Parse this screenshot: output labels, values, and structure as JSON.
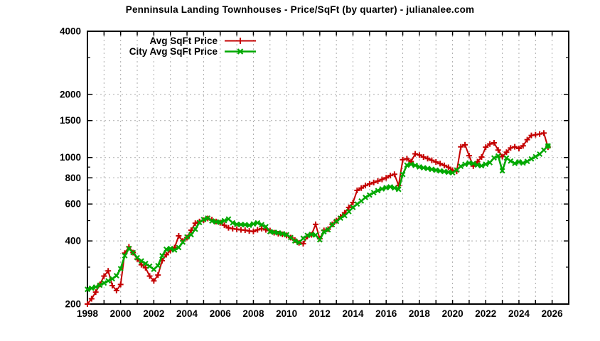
{
  "page": {
    "background": "#ffffff"
  },
  "chart_data": {
    "type": "line",
    "title": "Penninsula Landing Townhouses - Price/SqFt (by quarter) - julianalee.com",
    "xlabel": "",
    "ylabel": "",
    "x_axis": {
      "min": 1998,
      "max": 2027,
      "labeled_ticks": [
        1998,
        2000,
        2002,
        2004,
        2006,
        2008,
        2010,
        2012,
        2014,
        2016,
        2018,
        2020,
        2022,
        2024,
        2026
      ],
      "minor_tick_every": 1,
      "grid": true
    },
    "y_axis": {
      "scale": "log",
      "min": 200,
      "max": 4000,
      "labeled_ticks": [
        200,
        400,
        600,
        800,
        1000,
        1500,
        2000,
        4000
      ],
      "minor_ticks": [
        300,
        500,
        700,
        900,
        3000
      ],
      "grid_at": [
        400,
        600,
        800,
        1000,
        1500,
        2000
      ]
    },
    "legend": {
      "position": "top-left-inside"
    },
    "colors": {
      "axis": "#000000",
      "grid": "#ababab",
      "background": "#ffffff"
    },
    "series": [
      {
        "name": "Avg SqFt Price",
        "color": "#c40000",
        "marker": "plus",
        "line_width": 2,
        "end_square": false,
        "points": [
          [
            1998,
            200
          ],
          [
            1998.25,
            212
          ],
          [
            1998.5,
            228
          ],
          [
            1998.75,
            248
          ],
          [
            1999,
            272
          ],
          [
            1999.25,
            288
          ],
          [
            1999.5,
            245
          ],
          [
            1999.75,
            232
          ],
          [
            2000,
            248
          ],
          [
            2000.25,
            350
          ],
          [
            2000.5,
            375
          ],
          [
            2000.75,
            352
          ],
          [
            2001,
            328
          ],
          [
            2001.25,
            308
          ],
          [
            2001.5,
            298
          ],
          [
            2001.75,
            272
          ],
          [
            2002,
            258
          ],
          [
            2002.25,
            275
          ],
          [
            2002.5,
            322
          ],
          [
            2002.75,
            344
          ],
          [
            2003,
            360
          ],
          [
            2003.25,
            372
          ],
          [
            2003.5,
            423
          ],
          [
            2003.75,
            400
          ],
          [
            2004,
            415
          ],
          [
            2004.25,
            450
          ],
          [
            2004.5,
            486
          ],
          [
            2004.75,
            495
          ],
          [
            2005,
            502
          ],
          [
            2005.25,
            512
          ],
          [
            2005.5,
            505
          ],
          [
            2005.75,
            495
          ],
          [
            2006,
            488
          ],
          [
            2006.25,
            475
          ],
          [
            2006.5,
            462
          ],
          [
            2006.75,
            458
          ],
          [
            2007,
            455
          ],
          [
            2007.25,
            452
          ],
          [
            2007.5,
            450
          ],
          [
            2007.75,
            446
          ],
          [
            2008,
            444
          ],
          [
            2008.25,
            452
          ],
          [
            2008.5,
            458
          ],
          [
            2008.75,
            452
          ],
          [
            2009,
            448
          ],
          [
            2009.25,
            438
          ],
          [
            2009.5,
            433
          ],
          [
            2009.75,
            430
          ],
          [
            2010,
            425
          ],
          [
            2010.25,
            415
          ],
          [
            2010.5,
            404
          ],
          [
            2010.75,
            392
          ],
          [
            2011,
            388
          ],
          [
            2011.25,
            420
          ],
          [
            2011.5,
            428
          ],
          [
            2011.75,
            480
          ],
          [
            2012,
            410
          ],
          [
            2012.25,
            449
          ],
          [
            2012.5,
            455
          ],
          [
            2012.75,
            480
          ],
          [
            2013,
            500
          ],
          [
            2013.25,
            522
          ],
          [
            2013.5,
            545
          ],
          [
            2013.75,
            578
          ],
          [
            2014,
            610
          ],
          [
            2014.25,
            697
          ],
          [
            2014.5,
            715
          ],
          [
            2014.75,
            735
          ],
          [
            2015,
            748
          ],
          [
            2015.25,
            760
          ],
          [
            2015.5,
            772
          ],
          [
            2015.75,
            786
          ],
          [
            2016,
            800
          ],
          [
            2016.25,
            820
          ],
          [
            2016.5,
            832
          ],
          [
            2016.75,
            735
          ],
          [
            2017,
            976
          ],
          [
            2017.25,
            987
          ],
          [
            2017.5,
            956
          ],
          [
            2017.75,
            1041
          ],
          [
            2018,
            1027
          ],
          [
            2018.25,
            1005
          ],
          [
            2018.5,
            988
          ],
          [
            2018.75,
            970
          ],
          [
            2019,
            952
          ],
          [
            2019.25,
            935
          ],
          [
            2019.5,
            917
          ],
          [
            2019.75,
            898
          ],
          [
            2020,
            870
          ],
          [
            2020.25,
            859
          ],
          [
            2020.5,
            1124
          ],
          [
            2020.75,
            1150
          ],
          [
            2021,
            1020
          ],
          [
            2021.25,
            910
          ],
          [
            2021.5,
            955
          ],
          [
            2021.75,
            1005
          ],
          [
            2022,
            1120
          ],
          [
            2022.25,
            1160
          ],
          [
            2022.5,
            1175
          ],
          [
            2022.75,
            1085
          ],
          [
            2023,
            1010
          ],
          [
            2023.25,
            1060
          ],
          [
            2023.5,
            1110
          ],
          [
            2023.75,
            1125
          ],
          [
            2024,
            1104
          ],
          [
            2024.25,
            1137
          ],
          [
            2024.5,
            1216
          ],
          [
            2024.75,
            1274
          ],
          [
            2025,
            1284
          ],
          [
            2025.25,
            1294
          ],
          [
            2025.5,
            1308
          ],
          [
            2025.75,
            1120
          ]
        ]
      },
      {
        "name": "City Avg SqFt Price",
        "color": "#00a800",
        "marker": "cross",
        "line_width": 2.6,
        "end_square": true,
        "points": [
          [
            1998,
            235
          ],
          [
            1998.25,
            238
          ],
          [
            1998.5,
            241
          ],
          [
            1998.75,
            246
          ],
          [
            1999,
            252
          ],
          [
            1999.25,
            258
          ],
          [
            1999.5,
            264
          ],
          [
            1999.75,
            273
          ],
          [
            2000,
            295
          ],
          [
            2000.25,
            340
          ],
          [
            2000.5,
            368
          ],
          [
            2000.75,
            352
          ],
          [
            2001,
            333
          ],
          [
            2001.25,
            321
          ],
          [
            2001.5,
            312
          ],
          [
            2001.75,
            303
          ],
          [
            2002,
            293
          ],
          [
            2002.25,
            305
          ],
          [
            2002.5,
            340
          ],
          [
            2002.75,
            365
          ],
          [
            2003,
            368
          ],
          [
            2003.25,
            362
          ],
          [
            2003.5,
            372
          ],
          [
            2003.75,
            395
          ],
          [
            2004,
            418
          ],
          [
            2004.25,
            428
          ],
          [
            2004.5,
            455
          ],
          [
            2004.75,
            490
          ],
          [
            2005,
            506
          ],
          [
            2005.25,
            514
          ],
          [
            2005.5,
            498
          ],
          [
            2005.75,
            493
          ],
          [
            2006,
            491
          ],
          [
            2006.25,
            500
          ],
          [
            2006.5,
            509
          ],
          [
            2006.75,
            488
          ],
          [
            2007,
            480
          ],
          [
            2007.25,
            479
          ],
          [
            2007.5,
            478
          ],
          [
            2007.75,
            475
          ],
          [
            2008,
            482
          ],
          [
            2008.25,
            488
          ],
          [
            2008.5,
            478
          ],
          [
            2008.75,
            468
          ],
          [
            2009,
            443
          ],
          [
            2009.25,
            440
          ],
          [
            2009.5,
            437
          ],
          [
            2009.75,
            433
          ],
          [
            2010,
            428
          ],
          [
            2010.25,
            415
          ],
          [
            2010.5,
            400
          ],
          [
            2010.75,
            393
          ],
          [
            2011,
            412
          ],
          [
            2011.25,
            425
          ],
          [
            2011.5,
            430
          ],
          [
            2011.75,
            427
          ],
          [
            2012,
            405
          ],
          [
            2012.25,
            442
          ],
          [
            2012.5,
            452
          ],
          [
            2012.75,
            478
          ],
          [
            2013,
            496
          ],
          [
            2013.25,
            514
          ],
          [
            2013.5,
            528
          ],
          [
            2013.75,
            552
          ],
          [
            2014,
            578
          ],
          [
            2014.25,
            600
          ],
          [
            2014.5,
            620
          ],
          [
            2014.75,
            645
          ],
          [
            2015,
            662
          ],
          [
            2015.25,
            680
          ],
          [
            2015.5,
            695
          ],
          [
            2015.75,
            708
          ],
          [
            2016,
            718
          ],
          [
            2016.25,
            724
          ],
          [
            2016.5,
            716
          ],
          [
            2016.75,
            705
          ],
          [
            2017,
            830
          ],
          [
            2017.25,
            920
          ],
          [
            2017.5,
            928
          ],
          [
            2017.75,
            917
          ],
          [
            2018,
            902
          ],
          [
            2018.25,
            893
          ],
          [
            2018.5,
            886
          ],
          [
            2018.75,
            878
          ],
          [
            2019,
            870
          ],
          [
            2019.25,
            863
          ],
          [
            2019.5,
            857
          ],
          [
            2019.75,
            851
          ],
          [
            2020,
            846
          ],
          [
            2020.25,
            872
          ],
          [
            2020.5,
            908
          ],
          [
            2020.75,
            928
          ],
          [
            2021,
            941
          ],
          [
            2021.25,
            936
          ],
          [
            2021.5,
            921
          ],
          [
            2021.75,
            913
          ],
          [
            2022,
            929
          ],
          [
            2022.25,
            945
          ],
          [
            2022.5,
            995
          ],
          [
            2022.75,
            1017
          ],
          [
            2023,
            864
          ],
          [
            2023.25,
            994
          ],
          [
            2023.5,
            962
          ],
          [
            2023.75,
            938
          ],
          [
            2024,
            952
          ],
          [
            2024.25,
            941
          ],
          [
            2024.5,
            958
          ],
          [
            2024.75,
            985
          ],
          [
            2025,
            1009
          ],
          [
            2025.25,
            1038
          ],
          [
            2025.5,
            1085
          ],
          [
            2025.75,
            1135
          ]
        ]
      }
    ]
  }
}
